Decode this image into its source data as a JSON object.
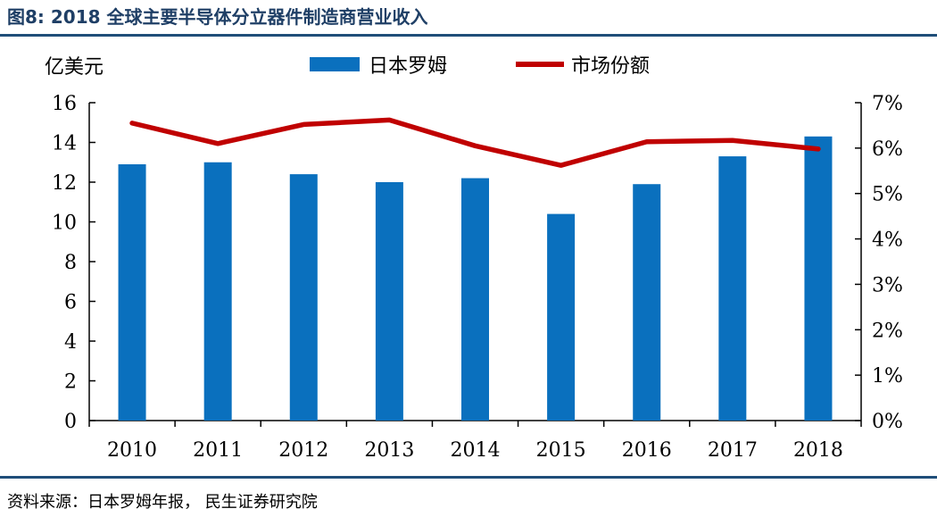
{
  "figure": {
    "title": "图8: 2018 全球主要半导体分立器件制造商营业收入",
    "source": "资料来源：日本罗姆年报， 民生证券研究院"
  },
  "chart_data": {
    "type": "bar",
    "title": "",
    "xlabel": "",
    "ylabel": "亿美元",
    "ylim": [
      0,
      16
    ],
    "yticks": [
      0,
      2,
      4,
      6,
      8,
      10,
      12,
      14,
      16
    ],
    "y2lim": [
      0,
      7
    ],
    "y2ticks": [
      "0%",
      "1%",
      "2%",
      "3%",
      "4%",
      "5%",
      "6%",
      "7%"
    ],
    "y2ticks_values": [
      0,
      1,
      2,
      3,
      4,
      5,
      6,
      7
    ],
    "categories": [
      "2010",
      "2011",
      "2012",
      "2013",
      "2014",
      "2015",
      "2016",
      "2017",
      "2018"
    ],
    "series": [
      {
        "name": "日本罗姆",
        "type": "bar",
        "axis": "left",
        "color": "#0a70be",
        "values": [
          12.9,
          13.0,
          12.4,
          12.0,
          12.2,
          10.4,
          11.9,
          13.3,
          14.3
        ]
      },
      {
        "name": "市场份额",
        "type": "line",
        "axis": "right",
        "color": "#c00000",
        "values": [
          6.55,
          6.1,
          6.52,
          6.62,
          6.05,
          5.62,
          6.14,
          6.17,
          5.98
        ]
      }
    ],
    "legend_position": "top-center",
    "grid": false
  }
}
